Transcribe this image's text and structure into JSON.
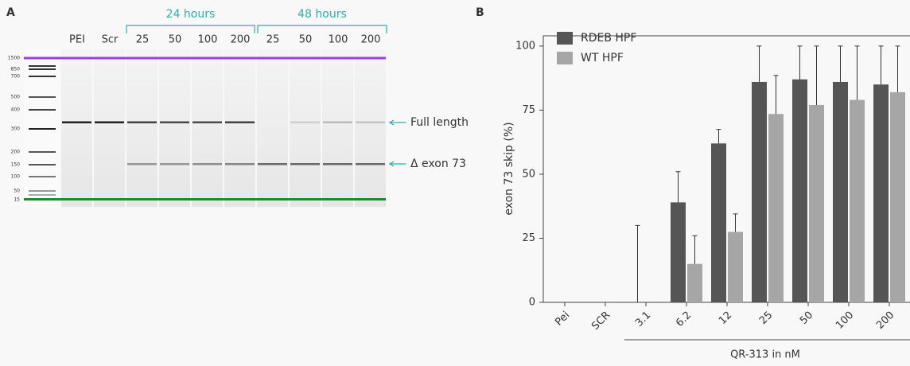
{
  "panel_a": {
    "label": "A",
    "group_labels": [
      "24 hours",
      "48 hours"
    ],
    "lane_labels": [
      "PEI",
      "Scr",
      "25",
      "50",
      "100",
      "200",
      "25",
      "50",
      "100",
      "200"
    ],
    "ladder_labels": [
      "1500",
      "850",
      "700",
      "500",
      "400",
      "300",
      "200",
      "150",
      "100",
      "50",
      "15"
    ],
    "annotations": [
      "Full length",
      "Δ exon 73"
    ]
  },
  "chart_data": {
    "type": "bar",
    "panel_label": "B",
    "ylabel": "exon 73 skip (%)",
    "xlabel": "QR-313 in nM",
    "categories": [
      "Pei",
      "SCR",
      "3.1",
      "6.2",
      "12",
      "25",
      "50",
      "100",
      "200"
    ],
    "series": [
      {
        "name": "RDEB HPF",
        "color": "#555555",
        "values": [
          0,
          0,
          0,
          39,
          62,
          86,
          87,
          86,
          85
        ],
        "errors": [
          null,
          null,
          30,
          12,
          5.5,
          14,
          13,
          14,
          15
        ]
      },
      {
        "name": "WT HPF",
        "color": "#a6a6a6",
        "values": [
          0,
          0,
          0,
          15,
          27.5,
          73.5,
          77,
          79,
          82
        ],
        "errors": [
          null,
          null,
          null,
          11,
          7,
          15,
          23,
          21,
          18
        ]
      }
    ],
    "ylim": [
      0,
      104
    ],
    "yticks": [
      0,
      25,
      50,
      75,
      100
    ],
    "legend": "upper left"
  }
}
